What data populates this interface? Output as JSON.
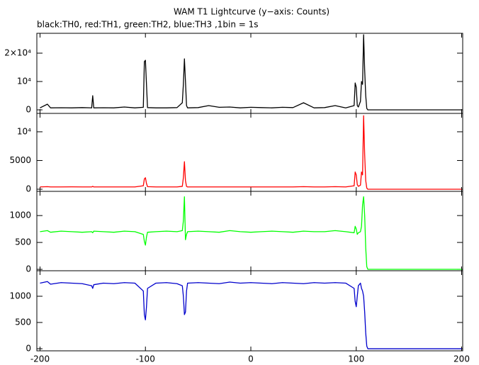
{
  "chart_data": [
    {
      "type": "line",
      "title": "WAM T1 Lightcurve (y−axis: Counts)",
      "subtitle": "black:TH0, red:TH1, green:TH2, blue:TH3 ,1bin = 1s",
      "x": [
        -200,
        -193,
        -190,
        -180,
        -170,
        -160,
        -151,
        -150,
        -149,
        -140,
        -130,
        -120,
        -110,
        -102,
        -101,
        -100,
        -99,
        -98,
        -90,
        -80,
        -70,
        -65,
        -64,
        -63,
        -62,
        -61,
        -60,
        -50,
        -40,
        -30,
        -20,
        -10,
        0,
        10,
        20,
        30,
        40,
        50,
        60,
        70,
        80,
        90,
        98,
        99,
        100,
        101,
        102,
        104,
        105,
        106,
        107,
        108,
        109,
        110,
        111,
        120,
        130,
        140,
        150,
        160,
        170,
        180,
        190,
        200
      ],
      "series": [
        {
          "color": "#000000",
          "values": [
            700,
            2000,
            700,
            750,
            700,
            800,
            700,
            5000,
            700,
            750,
            700,
            1000,
            700,
            900,
            17000,
            17500,
            9000,
            800,
            700,
            700,
            800,
            2500,
            9000,
            18000,
            10000,
            1500,
            700,
            800,
            1500,
            900,
            1000,
            700,
            900,
            800,
            700,
            900,
            800,
            2500,
            700,
            800,
            1500,
            700,
            1500,
            9500,
            8000,
            1500,
            1000,
            3000,
            10000,
            9000,
            26500,
            14000,
            5000,
            500,
            0,
            0,
            0,
            0,
            0,
            0,
            0,
            0,
            0,
            0
          ]
        }
      ],
      "xlim": [
        -203,
        201
      ],
      "ylim": [
        -1250,
        27000
      ],
      "yticks": [
        0,
        {
          "value": 10000,
          "label": "10⁴"
        },
        {
          "value": 20000,
          "label": "2×10⁴"
        }
      ]
    },
    {
      "type": "line",
      "x": [
        -200,
        -193,
        -190,
        -180,
        -170,
        -160,
        -151,
        -150,
        -149,
        -140,
        -130,
        -120,
        -110,
        -102,
        -101,
        -100,
        -99,
        -98,
        -90,
        -80,
        -70,
        -65,
        -64,
        -63,
        -62,
        -61,
        -60,
        -50,
        -40,
        -30,
        -20,
        -10,
        0,
        10,
        20,
        30,
        40,
        50,
        60,
        70,
        80,
        90,
        98,
        99,
        100,
        101,
        102,
        104,
        105,
        106,
        107,
        108,
        109,
        110,
        111,
        120,
        130,
        140,
        150,
        160,
        170,
        180,
        190,
        200
      ],
      "series": [
        {
          "color": "#ff0000",
          "values": [
            400,
            450,
            400,
            400,
            420,
            400,
            400,
            500,
            400,
            400,
            400,
            400,
            400,
            600,
            1800,
            2000,
            1000,
            450,
            400,
            400,
            400,
            500,
            2000,
            4800,
            1500,
            500,
            400,
            400,
            400,
            400,
            400,
            400,
            400,
            400,
            400,
            400,
            400,
            450,
            400,
            400,
            450,
            400,
            600,
            3000,
            2500,
            800,
            500,
            700,
            3000,
            2500,
            12800,
            6000,
            1500,
            200,
            0,
            0,
            0,
            0,
            0,
            0,
            0,
            0,
            0,
            0
          ]
        }
      ],
      "xlim": [
        -203,
        201
      ],
      "ylim": [
        -370,
        13200
      ],
      "yticks": [
        0,
        5000,
        {
          "value": 10000,
          "label": "10⁴"
        }
      ]
    },
    {
      "type": "line",
      "x": [
        -200,
        -193,
        -190,
        -180,
        -170,
        -160,
        -151,
        -150,
        -149,
        -140,
        -130,
        -120,
        -110,
        -102,
        -101,
        -100,
        -99,
        -98,
        -90,
        -80,
        -70,
        -65,
        -64,
        -63,
        -62,
        -61,
        -60,
        -50,
        -40,
        -30,
        -20,
        -10,
        0,
        10,
        20,
        30,
        40,
        50,
        60,
        70,
        80,
        90,
        98,
        99,
        100,
        101,
        102,
        104,
        105,
        106,
        107,
        108,
        109,
        110,
        111,
        120,
        130,
        140,
        150,
        160,
        170,
        180,
        190,
        200
      ],
      "series": [
        {
          "color": "#00ff00",
          "values": [
            700,
            720,
            690,
            710,
            700,
            690,
            700,
            680,
            710,
            700,
            690,
            710,
            700,
            650,
            520,
            450,
            600,
            690,
            700,
            710,
            700,
            720,
            900,
            1350,
            550,
            650,
            700,
            710,
            700,
            690,
            720,
            700,
            690,
            700,
            710,
            700,
            690,
            710,
            700,
            700,
            720,
            700,
            680,
            800,
            750,
            650,
            680,
            700,
            800,
            1200,
            1350,
            1000,
            400,
            50,
            0,
            0,
            0,
            0,
            0,
            0,
            0,
            0,
            0,
            0
          ]
        }
      ],
      "xlim": [
        -203,
        201
      ],
      "ylim": [
        -26,
        1450
      ],
      "yticks": [
        0,
        500,
        1000
      ]
    },
    {
      "type": "line",
      "x": [
        -200,
        -193,
        -190,
        -180,
        -170,
        -160,
        -151,
        -150,
        -149,
        -140,
        -130,
        -120,
        -110,
        -102,
        -101,
        -100,
        -99,
        -98,
        -90,
        -80,
        -70,
        -65,
        -64,
        -63,
        -62,
        -61,
        -60,
        -50,
        -40,
        -30,
        -20,
        -10,
        0,
        10,
        20,
        30,
        40,
        50,
        60,
        70,
        80,
        90,
        98,
        99,
        100,
        101,
        102,
        104,
        105,
        106,
        107,
        108,
        109,
        110,
        111,
        120,
        130,
        140,
        150,
        160,
        170,
        180,
        190,
        200
      ],
      "series": [
        {
          "color": "#0000cc",
          "values": [
            1250,
            1280,
            1230,
            1260,
            1250,
            1240,
            1200,
            1150,
            1220,
            1250,
            1240,
            1260,
            1250,
            1100,
            650,
            550,
            800,
            1150,
            1250,
            1260,
            1240,
            1200,
            1000,
            650,
            700,
            1100,
            1250,
            1260,
            1250,
            1240,
            1270,
            1250,
            1260,
            1250,
            1240,
            1260,
            1250,
            1240,
            1260,
            1250,
            1260,
            1250,
            1150,
            900,
            800,
            1000,
            1200,
            1250,
            1150,
            1100,
            1000,
            700,
            300,
            50,
            0,
            0,
            0,
            0,
            0,
            0,
            0,
            0,
            0,
            0
          ]
        }
      ],
      "xlim": [
        -203,
        201
      ],
      "ylim": [
        -40,
        1486
      ],
      "yticks": [
        0,
        500,
        1000
      ],
      "xticks": [
        -200,
        -100,
        0,
        100,
        200
      ]
    }
  ]
}
